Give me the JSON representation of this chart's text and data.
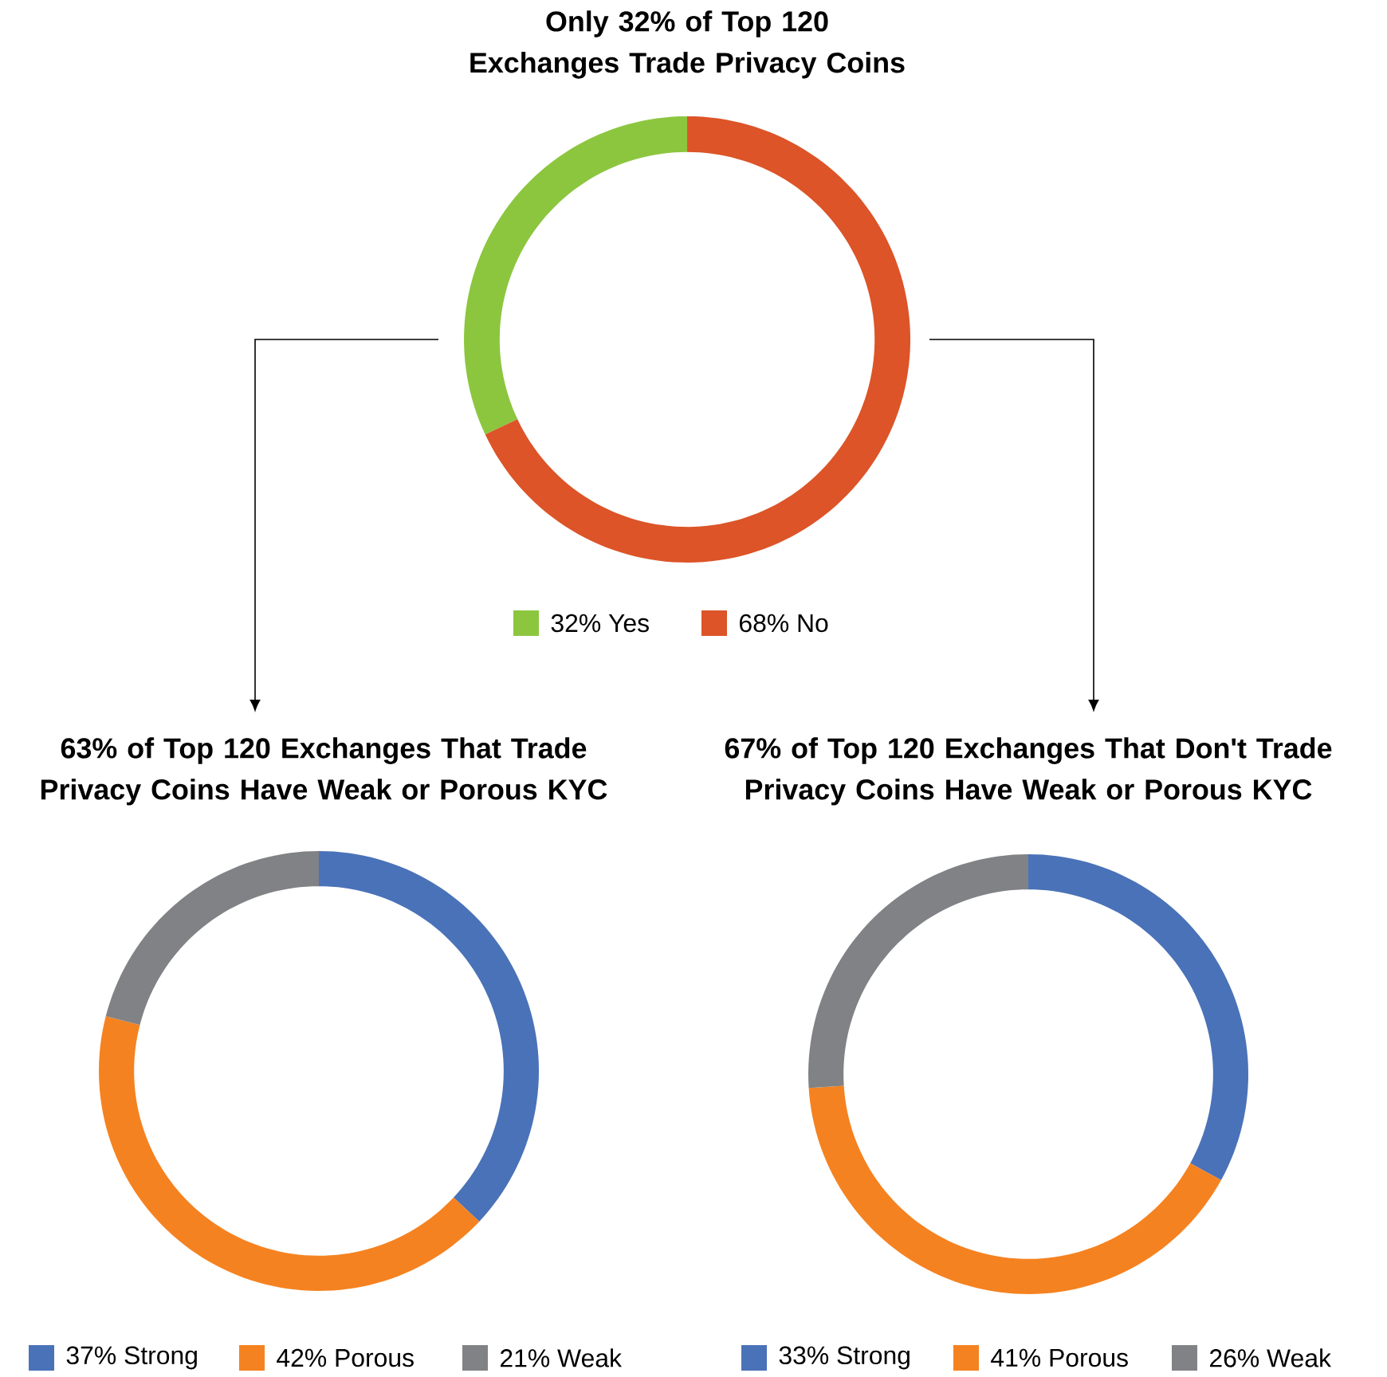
{
  "chart_data": [
    {
      "type": "donut",
      "title": "Only 32% of Top 120 Exchanges Trade Privacy Coins",
      "categories": [
        "32% Yes",
        "68% No"
      ],
      "values": [
        32,
        68
      ],
      "colors": [
        "#8cc63f",
        "#dc5428"
      ],
      "legend": "bottom"
    },
    {
      "type": "donut",
      "title": "63% of Top 120 Exchanges That Trade Privacy Coins Have Weak or Porous KYC",
      "categories": [
        "37% Strong",
        "42% Porous",
        "21% Weak"
      ],
      "values": [
        37,
        42,
        21
      ],
      "colors": [
        "#4a72b8",
        "#f58220",
        "#808285"
      ],
      "legend": "bottom"
    },
    {
      "type": "donut",
      "title": "67% of Top 120 Exchanges That Don't Trade Privacy Coins Have Weak or Porous KYC",
      "categories": [
        "33% Strong",
        "41% Porous",
        "26% Weak"
      ],
      "values": [
        33,
        41,
        26
      ],
      "colors": [
        "#4a72b8",
        "#f58220",
        "#808285"
      ],
      "legend": "bottom"
    }
  ]
}
